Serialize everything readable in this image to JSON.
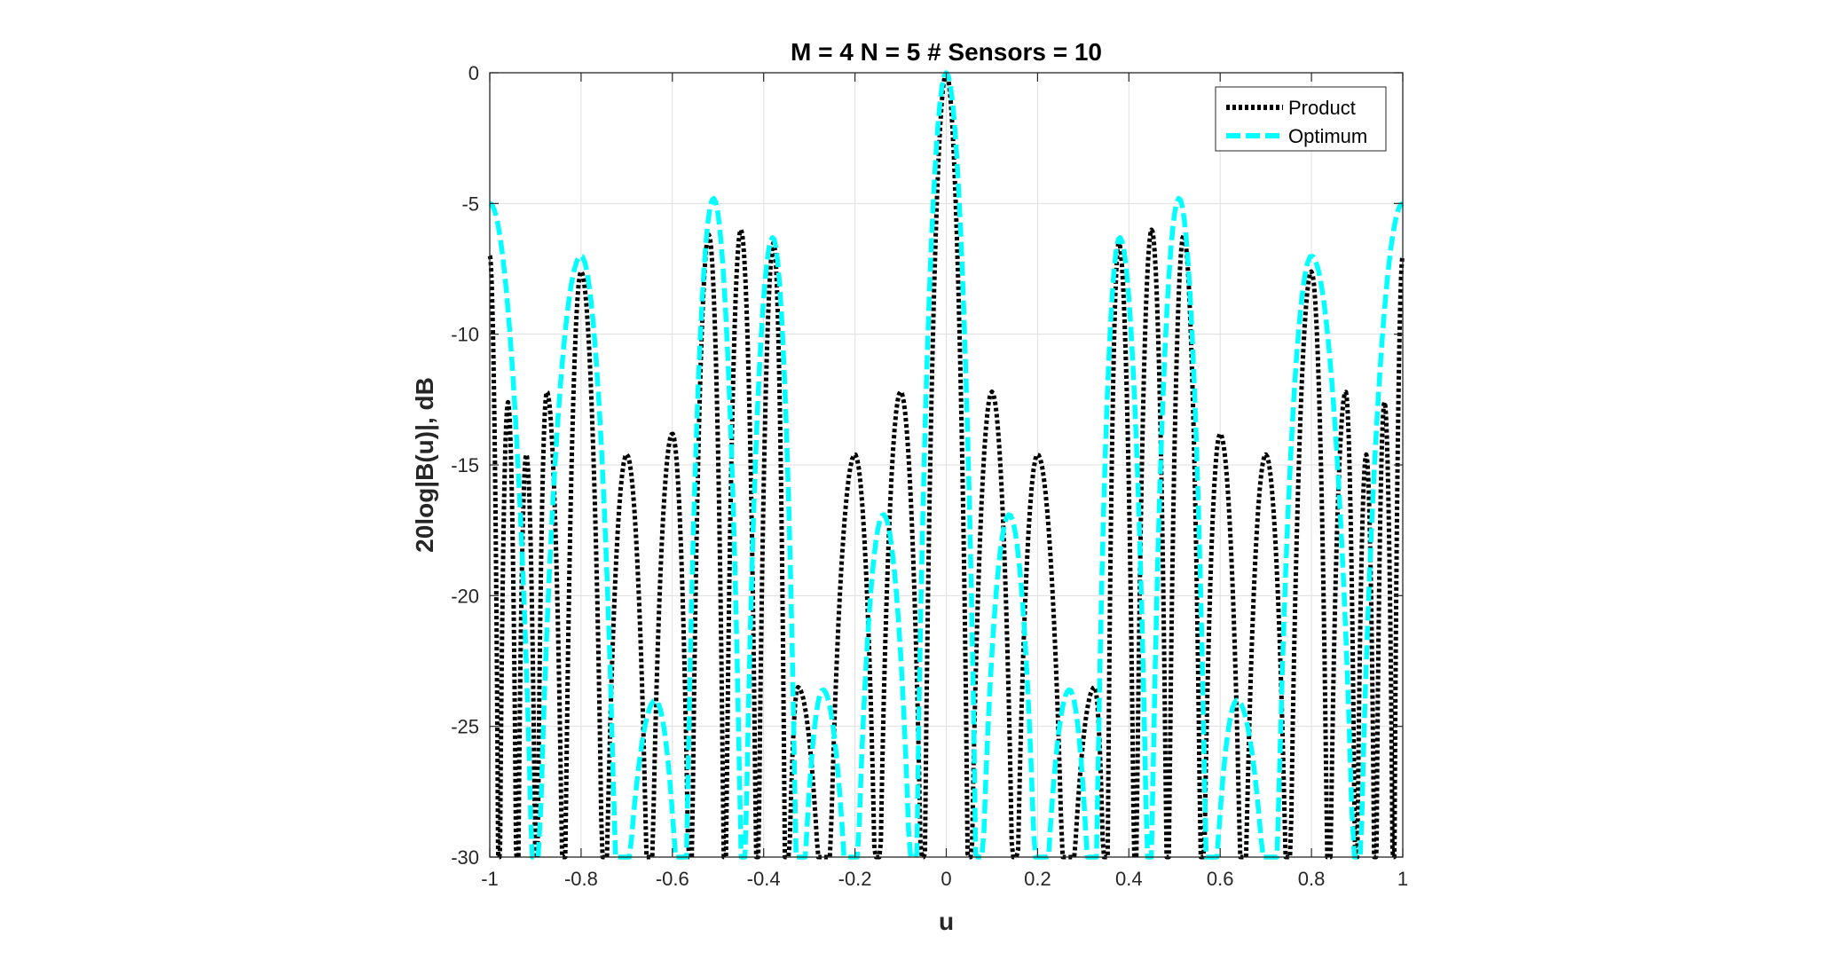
{
  "chart_data": {
    "type": "line",
    "title": "M = 4  N = 5  # Sensors = 10",
    "xlabel": "u",
    "ylabel": "20log|B(u)|, dB",
    "xlim": [
      -1,
      1
    ],
    "ylim": [
      -30,
      0
    ],
    "xticks": [
      -1,
      -0.8,
      -0.6,
      -0.4,
      -0.2,
      0,
      0.2,
      0.4,
      0.6,
      0.8,
      1
    ],
    "xtick_labels": [
      "-1",
      "-0.8",
      "-0.6",
      "-0.4",
      "-0.2",
      "0",
      "0.2",
      "0.4",
      "0.6",
      "0.8",
      "1"
    ],
    "yticks": [
      0,
      -5,
      -10,
      -15,
      -20,
      -25,
      -30
    ],
    "ytick_labels": [
      "0",
      "-5",
      "-10",
      "-15",
      "-20",
      "-25",
      "-30"
    ],
    "grid": true,
    "legend_position": "top-right",
    "series": [
      {
        "name": "Product",
        "color": "#000000",
        "style": "dotted",
        "lobes": [
          [
            0,
            0
          ],
          [
            0.1,
            -12.2
          ],
          [
            0.2,
            -14.6
          ],
          [
            0.325,
            -23.5
          ],
          [
            0.378,
            -6.5
          ],
          [
            0.45,
            -6.0
          ],
          [
            0.52,
            -6.2
          ],
          [
            0.6,
            -13.8
          ],
          [
            0.7,
            -14.6
          ],
          [
            0.8,
            -7.6
          ],
          [
            0.875,
            -12.2
          ],
          [
            0.92,
            -14.6
          ],
          [
            0.96,
            -12.6
          ],
          [
            1.0,
            -7.0
          ]
        ]
      },
      {
        "name": "Optimum",
        "color": "#00FFFF",
        "style": "dashed",
        "lobes": [
          [
            0,
            0
          ],
          [
            0.138,
            -16.9
          ],
          [
            0.27,
            -23.6
          ],
          [
            0.38,
            -6.3
          ],
          [
            0.51,
            -4.8
          ],
          [
            0.637,
            -24.0
          ],
          [
            0.8,
            -7.0
          ],
          [
            1.0,
            -5.0
          ]
        ]
      }
    ]
  }
}
